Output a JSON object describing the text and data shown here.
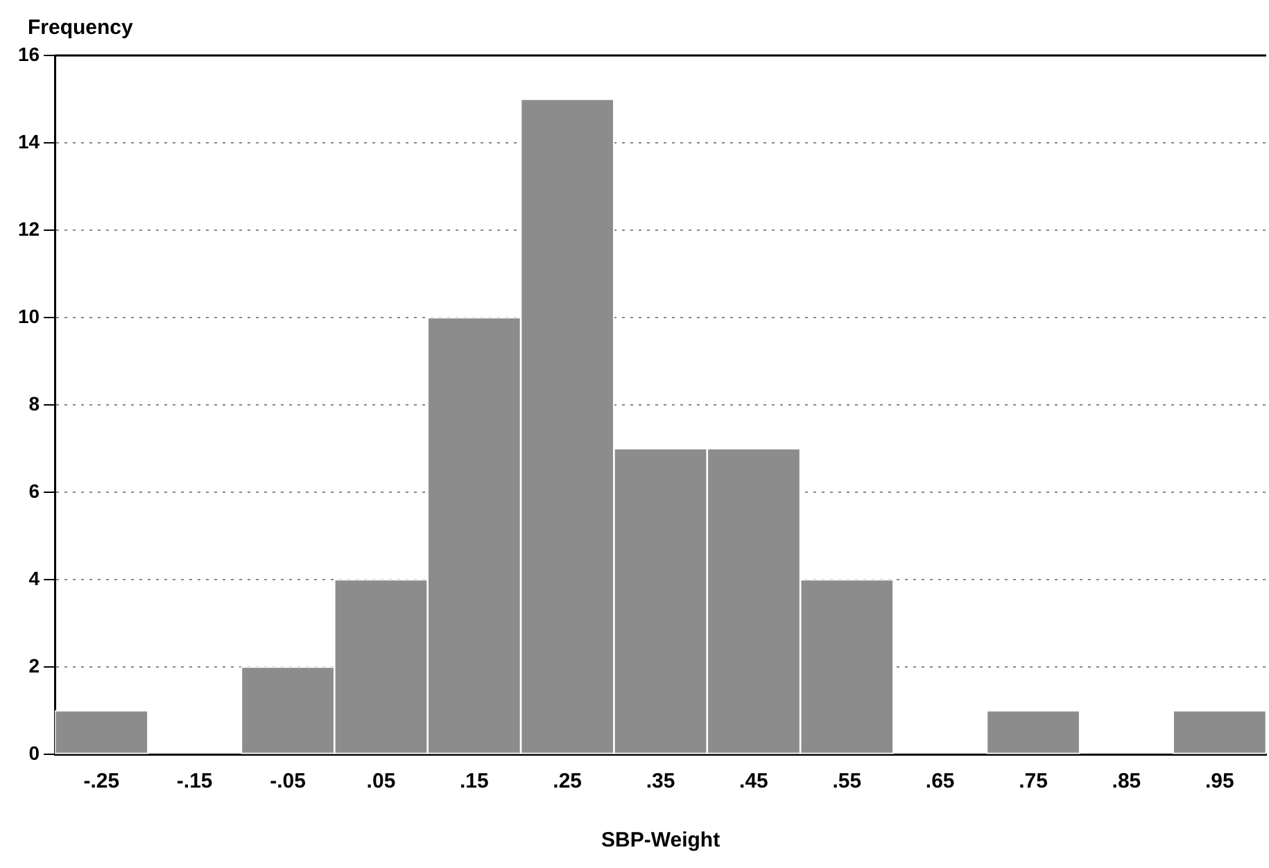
{
  "chart_data": {
    "type": "histogram",
    "xlabel": "SBP-Weight",
    "ylabel": "Frequency",
    "bins": [
      -0.3,
      -0.2,
      -0.1,
      0,
      0.1,
      0.2,
      0.3,
      0.4,
      0.5,
      0.6,
      0.7,
      0.8,
      0.9,
      1.0
    ],
    "values": [
      1,
      0,
      2,
      4,
      10,
      15,
      7,
      7,
      4,
      0,
      1,
      0,
      1
    ],
    "color": "#8c8c8c",
    "xlim": [
      -0.3,
      1.0
    ],
    "xticks": [
      {
        "value": -0.25,
        "label": "-.25"
      },
      {
        "value": -0.15,
        "label": "-.15"
      },
      {
        "value": -0.05,
        "label": "-.05"
      },
      {
        "value": 0.05,
        "label": ".05"
      },
      {
        "value": 0.15,
        "label": ".15"
      },
      {
        "value": 0.25,
        "label": ".25"
      },
      {
        "value": 0.35,
        "label": ".35"
      },
      {
        "value": 0.45,
        "label": ".45"
      },
      {
        "value": 0.55,
        "label": ".55"
      },
      {
        "value": 0.65,
        "label": ".65"
      },
      {
        "value": 0.75,
        "label": ".75"
      },
      {
        "value": 0.85,
        "label": ".85"
      },
      {
        "value": 0.95,
        "label": ".95"
      }
    ],
    "ylim": [
      0,
      16
    ],
    "yticks": [
      0,
      2,
      4,
      6,
      8,
      10,
      12,
      14,
      16
    ],
    "grid": "y"
  }
}
